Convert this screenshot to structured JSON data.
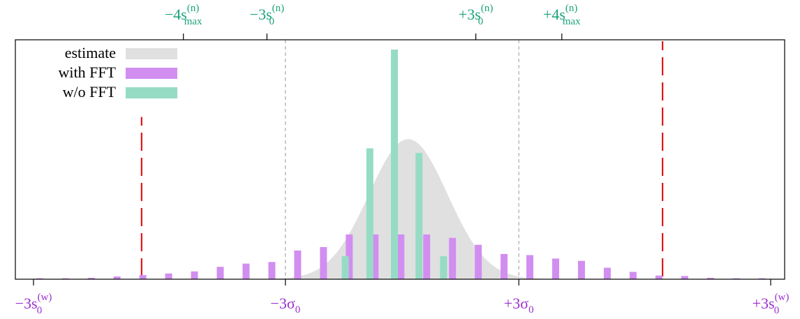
{
  "chart_data": {
    "type": "bar",
    "xlim": [
      -3,
      3
    ],
    "grid": false,
    "legend_placement": "top-left",
    "legend": [
      {
        "label": "estimate",
        "color": "#e0e0e0"
      },
      {
        "label": "with FFT",
        "color": "#d18ef0"
      },
      {
        "label": "w/o FFT",
        "color": "#96dcc5"
      }
    ],
    "top_ticks": [
      {
        "x": -1.78,
        "text": "−4s",
        "sub": "max",
        "sup": "(n)"
      },
      {
        "x": -1.1,
        "text": "−3s",
        "sub": "0",
        "sup": "(n)"
      },
      {
        "x": 0.6,
        "text": "+3s",
        "sub": "0",
        "sup": "(n)"
      },
      {
        "x": 1.3,
        "text": "+4s",
        "sub": "max",
        "sup": "(n)"
      }
    ],
    "bottom_ticks": [
      {
        "x": -3,
        "text": "−3s",
        "sub": "0",
        "sup": "(w)",
        "color": "#9b2fd0"
      },
      {
        "x": -0.95,
        "text": "−3σ",
        "sub": "0",
        "sup": "",
        "color": "#9a9a9a"
      },
      {
        "x": 0.95,
        "text": "+3σ",
        "sub": "0",
        "sup": "",
        "color": "#9a9a9a"
      },
      {
        "x": 3,
        "text": "+3s",
        "sub": "0",
        "sup": "(w)",
        "color": "#9b2fd0"
      }
    ],
    "sigma_lines": [
      -0.95,
      0.95
    ],
    "red_lines": [
      {
        "x": -2.12,
        "top": 0.67
      },
      {
        "x": 2.12,
        "top": 1.0
      }
    ],
    "estimate": {
      "center": 0.05,
      "sigma": 0.32,
      "peak": 0.61
    },
    "with_fft": [
      {
        "x": -2.95,
        "y": 0.004
      },
      {
        "x": -2.74,
        "y": 0.004
      },
      {
        "x": -2.53,
        "y": 0.006
      },
      {
        "x": -2.32,
        "y": 0.012
      },
      {
        "x": -2.11,
        "y": 0.018
      },
      {
        "x": -1.9,
        "y": 0.025
      },
      {
        "x": -1.69,
        "y": 0.034
      },
      {
        "x": -1.48,
        "y": 0.054
      },
      {
        "x": -1.27,
        "y": 0.068
      },
      {
        "x": -1.06,
        "y": 0.075
      },
      {
        "x": -0.85,
        "y": 0.125
      },
      {
        "x": -0.64,
        "y": 0.14
      },
      {
        "x": -0.43,
        "y": 0.195
      },
      {
        "x": -0.22,
        "y": 0.195
      },
      {
        "x": -0.01,
        "y": 0.195
      },
      {
        "x": 0.2,
        "y": 0.195
      },
      {
        "x": 0.41,
        "y": 0.18
      },
      {
        "x": 0.62,
        "y": 0.15
      },
      {
        "x": 0.83,
        "y": 0.11
      },
      {
        "x": 1.04,
        "y": 0.105
      },
      {
        "x": 1.25,
        "y": 0.09
      },
      {
        "x": 1.46,
        "y": 0.08
      },
      {
        "x": 1.67,
        "y": 0.05
      },
      {
        "x": 1.88,
        "y": 0.032
      },
      {
        "x": 2.09,
        "y": 0.016
      },
      {
        "x": 2.3,
        "y": 0.014
      },
      {
        "x": 2.51,
        "y": 0.006
      },
      {
        "x": 2.72,
        "y": 0.004
      },
      {
        "x": 2.93,
        "y": 0.004
      }
    ],
    "without_fft": [
      {
        "x": -0.4,
        "y": 0.1
      },
      {
        "x": -0.2,
        "y": 0.57
      },
      {
        "x": 0.0,
        "y": 1.0
      },
      {
        "x": 0.2,
        "y": 0.55
      },
      {
        "x": 0.4,
        "y": 0.1
      }
    ]
  }
}
